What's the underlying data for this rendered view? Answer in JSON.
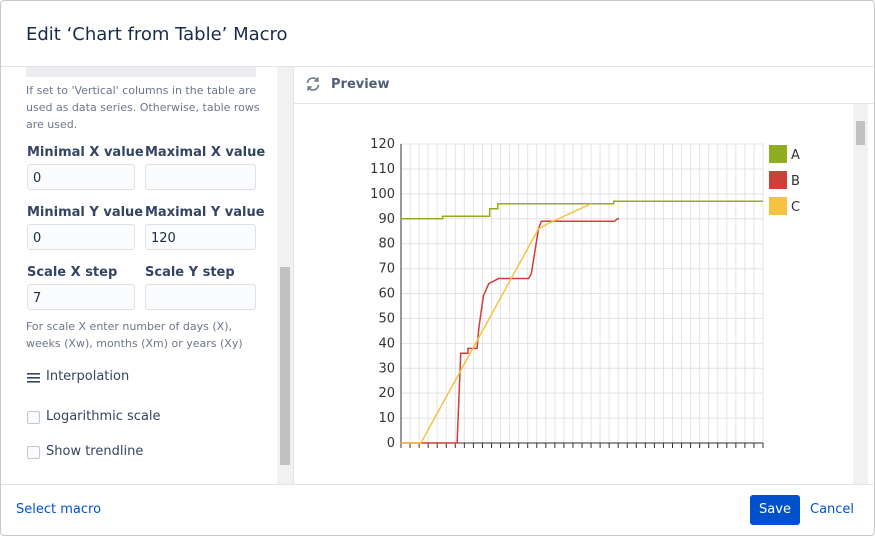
{
  "header": {
    "title": "Edit ‘Chart from Table’ Macro"
  },
  "form": {
    "series_help": "If set to 'Vertical' columns in the table are used as data series. Otherwise, table rows are used.",
    "fields": [
      {
        "label": "Minimal X value",
        "value": "0"
      },
      {
        "label": "Maximal X value"
      },
      {
        "label": "Minimal Y value",
        "value": "0"
      },
      {
        "label": "Maximal Y value",
        "value": "120"
      },
      {
        "label": "Scale X step",
        "value": "7"
      },
      {
        "label": "Scale Y step"
      }
    ],
    "scale_help": "For scale X enter number of days (X), weeks (Xw), months (Xm) or years (Xy)",
    "interpolation": "Interpolation",
    "checkboxes": [
      "Logarithmic scale",
      "Show trendline"
    ]
  },
  "preview": {
    "label": "Preview"
  },
  "chart_data": {
    "type": "line",
    "xlim": [
      0,
      40
    ],
    "ylim": [
      0,
      120
    ],
    "yticks": [
      0,
      10,
      20,
      30,
      40,
      50,
      60,
      70,
      80,
      90,
      100,
      110,
      120
    ],
    "grid": true,
    "legend": "right",
    "series": [
      {
        "name": "A",
        "color": "#8fad1f",
        "x": [
          0,
          4.6,
          4.6,
          9.8,
          9.8,
          10.7,
          10.7,
          23.5,
          23.5,
          40
        ],
        "values": [
          90,
          90,
          91,
          91,
          94,
          94,
          96,
          96,
          97,
          97
        ]
      },
      {
        "name": "B",
        "color": "#cf3f37",
        "x": [
          0,
          6.2,
          6.6,
          7.4,
          7.4,
          8.4,
          8.6,
          9.1,
          9.1,
          9.7,
          9.7,
          10.8,
          10.8,
          14.1,
          14.4,
          15.2,
          15.5,
          23.6,
          23.9,
          24.1
        ],
        "values": [
          0,
          0,
          36,
          36,
          38,
          38,
          46,
          59,
          59,
          64,
          64,
          66,
          66,
          66,
          68,
          86,
          89,
          89,
          90,
          90
        ]
      },
      {
        "name": "C",
        "color": "#f5c242",
        "x": [
          0,
          2.2,
          15.2,
          16.2,
          21.0
        ],
        "values": [
          0,
          0,
          86,
          88,
          96
        ]
      }
    ]
  },
  "footer": {
    "select": "Select macro",
    "save": "Save",
    "cancel": "Cancel"
  }
}
